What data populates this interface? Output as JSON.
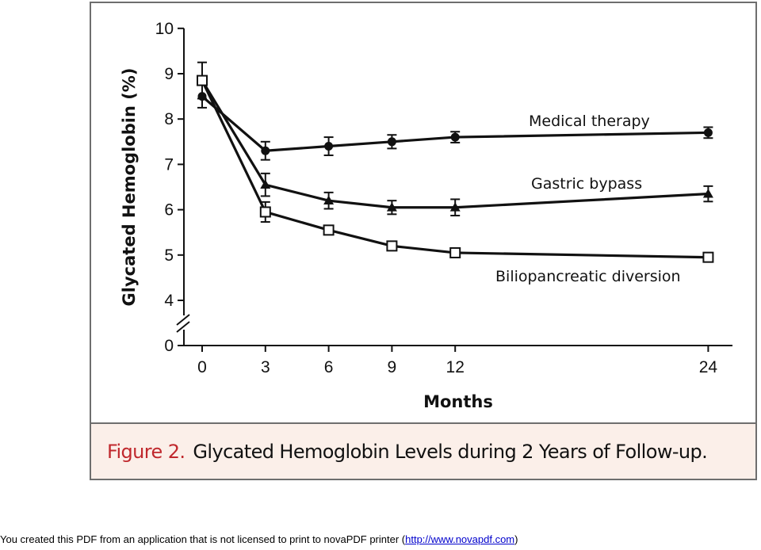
{
  "chart_data": {
    "type": "line",
    "xlabel": "Months",
    "ylabel": "Glycated Hemoglobin (%)",
    "x_ticks": [
      0,
      3,
      6,
      9,
      12,
      24
    ],
    "y_ticks": [
      4,
      5,
      6,
      7,
      8,
      9,
      10
    ],
    "y_break_tick": 0,
    "ylim": [
      4,
      10
    ],
    "xlim": [
      0,
      24
    ],
    "axis_break": true,
    "grid": false,
    "legend": "inline labels",
    "series": [
      {
        "name": "Medical therapy",
        "marker": "circle-filled",
        "x": [
          0,
          3,
          6,
          9,
          12,
          24
        ],
        "y": [
          8.5,
          7.3,
          7.4,
          7.5,
          7.6,
          7.7
        ],
        "err": [
          0.25,
          0.2,
          0.2,
          0.15,
          0.12,
          0.12
        ]
      },
      {
        "name": "Gastric bypass",
        "marker": "triangle-filled",
        "x": [
          0,
          3,
          6,
          9,
          12,
          24
        ],
        "y": [
          8.85,
          6.55,
          6.2,
          6.05,
          6.05,
          6.35
        ],
        "err": [
          0.4,
          0.25,
          0.18,
          0.15,
          0.18,
          0.17
        ]
      },
      {
        "name": "Biliopancreatic diversion",
        "marker": "square-open",
        "x": [
          0,
          3,
          6,
          9,
          12,
          24
        ],
        "y": [
          8.85,
          5.95,
          5.55,
          5.2,
          5.05,
          4.95
        ],
        "err": [
          0.0,
          0.22,
          0.1,
          0.06,
          0.1,
          0.1
        ]
      }
    ]
  },
  "caption": {
    "number": "Figure 2.",
    "title": "Glycated Hemoglobin Levels during 2 Years of Follow-up."
  },
  "footer": {
    "text": "You created this PDF from an application that is not licensed to print to novaPDF printer (",
    "link": "http://www.novapdf.com",
    "end": ")"
  },
  "colors": {
    "ink": "#111111",
    "frame": "#6e6e6e",
    "caption_background": "#fbefe9",
    "caption_number": "#c0282d"
  }
}
